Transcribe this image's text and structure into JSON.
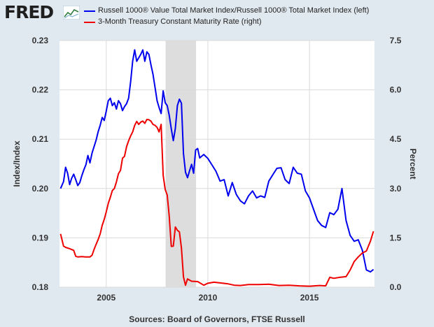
{
  "header": {
    "logo_text": "FRED",
    "legend": [
      {
        "label": "Russell 1000® Value Total Market Index/Russell 1000® Total Market Index (left)",
        "color": "#0000ee"
      },
      {
        "label": "3-Month Treasury Constant Maturity Rate (right)",
        "color": "#ee0000"
      }
    ]
  },
  "footer": {
    "source": "Sources: Board of Governors, FTSE Russell"
  },
  "chart_data": {
    "type": "line",
    "ylabel": "Index/Index",
    "y2label": "Percent",
    "ylim": [
      0.18,
      0.23
    ],
    "y2lim": [
      0.0,
      7.5
    ],
    "xlim": [
      2002.7,
      2018.2
    ],
    "yticks": [
      "0.18",
      "0.19",
      "0.20",
      "0.21",
      "0.22",
      "0.23"
    ],
    "y2ticks": [
      "0.0",
      "1.5",
      "3.0",
      "4.5",
      "6.0",
      "7.5"
    ],
    "xticks": [
      "2005",
      "2010",
      "2015"
    ],
    "grid": true,
    "recession_shading": {
      "start": 2007.92,
      "end": 2009.42,
      "color": "#dddddd"
    },
    "series": [
      {
        "name": "Russell 1000® Value Total Market Index/Russell 1000® Total Market Index (left)",
        "axis": "left",
        "color": "#0000ee",
        "x": [
          2002.75,
          2002.9,
          2003.0,
          2003.1,
          2003.2,
          2003.3,
          2003.4,
          2003.5,
          2003.6,
          2003.7,
          2003.8,
          2003.9,
          2004.0,
          2004.1,
          2004.2,
          2004.3,
          2004.4,
          2004.5,
          2004.6,
          2004.7,
          2004.8,
          2004.9,
          2005.0,
          2005.1,
          2005.2,
          2005.3,
          2005.4,
          2005.5,
          2005.6,
          2005.7,
          2005.8,
          2005.9,
          2006.0,
          2006.1,
          2006.2,
          2006.3,
          2006.4,
          2006.5,
          2006.6,
          2006.7,
          2006.8,
          2006.9,
          2007.0,
          2007.1,
          2007.2,
          2007.3,
          2007.4,
          2007.5,
          2007.6,
          2007.7,
          2007.8,
          2007.9,
          2008.0,
          2008.1,
          2008.2,
          2008.3,
          2008.4,
          2008.5,
          2008.6,
          2008.7,
          2008.8,
          2008.9,
          2009.0,
          2009.1,
          2009.2,
          2009.3,
          2009.4,
          2009.5,
          2009.6,
          2009.8,
          2010.0,
          2010.2,
          2010.4,
          2010.6,
          2010.8,
          2011.0,
          2011.2,
          2011.4,
          2011.6,
          2011.8,
          2012.0,
          2012.2,
          2012.4,
          2012.6,
          2012.8,
          2013.0,
          2013.2,
          2013.4,
          2013.6,
          2013.8,
          2014.0,
          2014.2,
          2014.4,
          2014.6,
          2014.8,
          2015.0,
          2015.2,
          2015.4,
          2015.6,
          2015.8,
          2016.0,
          2016.2,
          2016.4,
          2016.6,
          2016.8,
          2017.0,
          2017.2,
          2017.4,
          2017.6,
          2017.8,
          2018.0,
          2018.15
        ],
        "y": [
          0.2,
          0.2014,
          0.2043,
          0.2031,
          0.2008,
          0.2021,
          0.2029,
          0.2018,
          0.2006,
          0.2012,
          0.2026,
          0.2038,
          0.2048,
          0.2067,
          0.2052,
          0.2072,
          0.2085,
          0.2098,
          0.2115,
          0.2128,
          0.2144,
          0.2138,
          0.2157,
          0.2178,
          0.2183,
          0.2168,
          0.2174,
          0.2161,
          0.2178,
          0.2172,
          0.2158,
          0.2166,
          0.2172,
          0.2183,
          0.2216,
          0.2258,
          0.2281,
          0.2258,
          0.2265,
          0.2272,
          0.2281,
          0.2258,
          0.2277,
          0.2272,
          0.2251,
          0.2232,
          0.2205,
          0.2178,
          0.2164,
          0.2152,
          0.2198,
          0.2174,
          0.2168,
          0.2148,
          0.2121,
          0.2097,
          0.2122,
          0.2168,
          0.2181,
          0.2173,
          0.2071,
          0.2033,
          0.2022,
          0.2036,
          0.2049,
          0.2031,
          0.2078,
          0.2081,
          0.2062,
          0.2069,
          0.2061,
          0.2048,
          0.2035,
          0.2015,
          0.2018,
          0.1985,
          0.2012,
          0.1988,
          0.1975,
          0.1969,
          0.1985,
          0.1995,
          0.1981,
          0.1985,
          0.1982,
          0.2015,
          0.2028,
          0.2041,
          0.2042,
          0.2018,
          0.201,
          0.2043,
          0.2031,
          0.2029,
          0.1995,
          0.1981,
          0.1958,
          0.1935,
          0.1925,
          0.1921,
          0.1951,
          0.1947,
          0.1958,
          0.2,
          0.1935,
          0.1905,
          0.1893,
          0.1896,
          0.1875,
          0.1835,
          0.1831,
          0.1836
        ]
      },
      {
        "name": "3-Month Treasury Constant Maturity Rate (right)",
        "axis": "right",
        "color": "#ee0000",
        "x": [
          2002.75,
          2002.9,
          2003.0,
          2003.2,
          2003.4,
          2003.5,
          2003.6,
          2003.8,
          2004.0,
          2004.2,
          2004.3,
          2004.4,
          2004.5,
          2004.6,
          2004.7,
          2004.8,
          2004.9,
          2005.0,
          2005.1,
          2005.2,
          2005.3,
          2005.4,
          2005.5,
          2005.6,
          2005.7,
          2005.8,
          2005.9,
          2006.0,
          2006.1,
          2006.2,
          2006.3,
          2006.4,
          2006.5,
          2006.6,
          2006.7,
          2006.8,
          2006.9,
          2007.0,
          2007.1,
          2007.2,
          2007.3,
          2007.4,
          2007.5,
          2007.6,
          2007.7,
          2007.8,
          2007.9,
          2008.0,
          2008.1,
          2008.2,
          2008.3,
          2008.4,
          2008.5,
          2008.6,
          2008.7,
          2008.8,
          2008.9,
          2009.0,
          2009.2,
          2009.5,
          2009.8,
          2010.0,
          2010.3,
          2010.6,
          2011.0,
          2011.3,
          2011.6,
          2012.0,
          2012.5,
          2013.0,
          2013.5,
          2014.0,
          2014.5,
          2015.0,
          2015.5,
          2015.8,
          2016.0,
          2016.2,
          2016.5,
          2016.8,
          2017.0,
          2017.2,
          2017.4,
          2017.6,
          2017.8,
          2018.0,
          2018.15
        ],
        "y": [
          1.62,
          1.25,
          1.21,
          1.17,
          1.12,
          0.94,
          0.92,
          0.93,
          0.92,
          0.92,
          0.97,
          1.15,
          1.3,
          1.45,
          1.62,
          1.88,
          2.06,
          2.29,
          2.55,
          2.73,
          2.94,
          3.0,
          3.2,
          3.45,
          3.55,
          3.92,
          3.98,
          4.27,
          4.45,
          4.6,
          4.72,
          4.92,
          5.04,
          4.95,
          5.02,
          5.05,
          4.98,
          5.1,
          5.09,
          5.05,
          4.95,
          4.92,
          4.86,
          4.72,
          4.95,
          3.4,
          2.97,
          2.8,
          2.15,
          1.24,
          1.25,
          1.83,
          1.73,
          1.68,
          1.19,
          0.31,
          0.06,
          0.25,
          0.18,
          0.17,
          0.06,
          0.12,
          0.15,
          0.13,
          0.1,
          0.06,
          0.05,
          0.08,
          0.08,
          0.09,
          0.05,
          0.06,
          0.04,
          0.03,
          0.05,
          0.04,
          0.3,
          0.27,
          0.3,
          0.32,
          0.52,
          0.78,
          0.92,
          1.04,
          1.1,
          1.4,
          1.7
        ]
      }
    ]
  }
}
